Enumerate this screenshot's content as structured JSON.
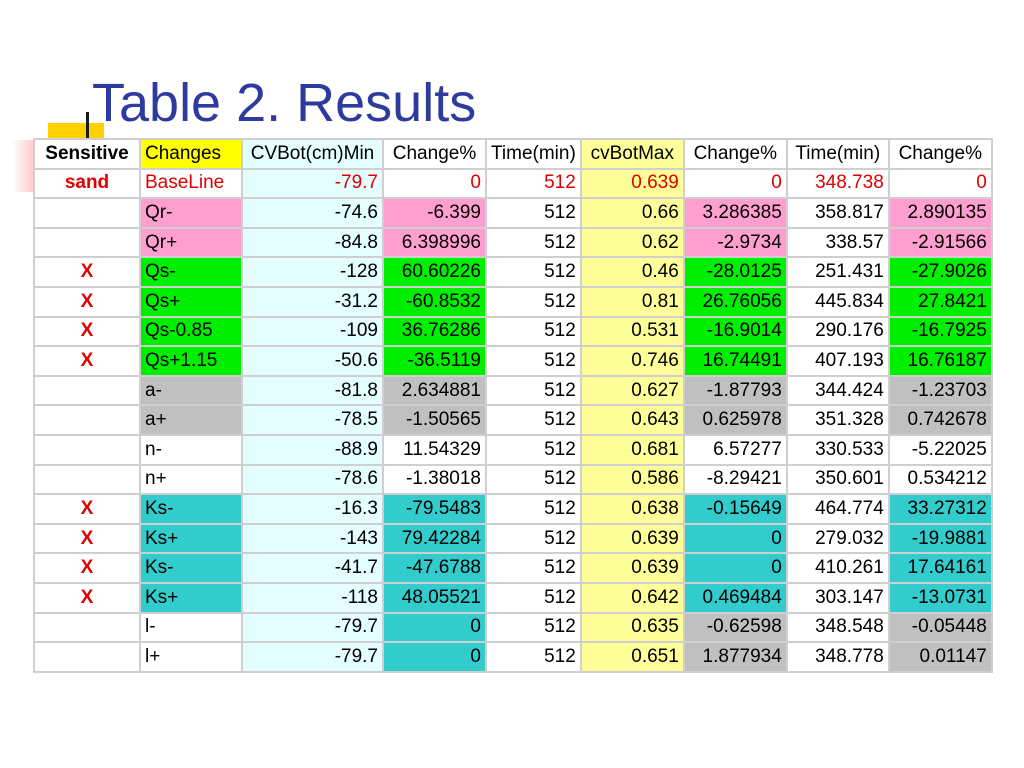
{
  "title": "Table 2. Results",
  "colors": {
    "title": "#2e3a9e",
    "mark": "#e00000",
    "cv_column": "#e4fdff",
    "cvbotmax_column": "#ffff99",
    "header_changes": "#ffff00",
    "qr": "#ff9fd0",
    "qs": "#00ee00",
    "a": "#c0c0c0",
    "ks": "#33cccc"
  },
  "table": {
    "headers": [
      "Sensitive",
      "Changes",
      "CVBot(cm)Min",
      "Change%",
      "Time(min)",
      "cvBotMax",
      "Change%",
      "Time(min)",
      "Change%"
    ],
    "rows": [
      {
        "sensitive": "sand",
        "change": "BaseLine",
        "cvbot_min": "-79.7",
        "change1": "0",
        "time1": "512",
        "cvbotmax": "0.639",
        "change2": "0",
        "time2": "348.738",
        "change3": "0"
      },
      {
        "sensitive": "",
        "change": "Qr-",
        "cvbot_min": "-74.6",
        "change1": "-6.399",
        "time1": "512",
        "cvbotmax": "0.66",
        "change2": "3.286385",
        "time2": "358.817",
        "change3": "2.890135"
      },
      {
        "sensitive": "",
        "change": "Qr+",
        "cvbot_min": "-84.8",
        "change1": "6.398996",
        "time1": "512",
        "cvbotmax": "0.62",
        "change2": "-2.9734",
        "time2": "338.57",
        "change3": "-2.91566"
      },
      {
        "sensitive": "X",
        "change": "Qs-",
        "cvbot_min": "-128",
        "change1": "60.60226",
        "time1": "512",
        "cvbotmax": "0.46",
        "change2": "-28.0125",
        "time2": "251.431",
        "change3": "-27.9026"
      },
      {
        "sensitive": "X",
        "change": "Qs+",
        "cvbot_min": "-31.2",
        "change1": "-60.8532",
        "time1": "512",
        "cvbotmax": "0.81",
        "change2": "26.76056",
        "time2": "445.834",
        "change3": "27.8421"
      },
      {
        "sensitive": "X",
        "change": "Qs-0.85",
        "cvbot_min": "-109",
        "change1": "36.76286",
        "time1": "512",
        "cvbotmax": "0.531",
        "change2": "-16.9014",
        "time2": "290.176",
        "change3": "-16.7925"
      },
      {
        "sensitive": "X",
        "change": "Qs+1.15",
        "cvbot_min": "-50.6",
        "change1": "-36.5119",
        "time1": "512",
        "cvbotmax": "0.746",
        "change2": "16.74491",
        "time2": "407.193",
        "change3": "16.76187"
      },
      {
        "sensitive": "",
        "change": "a-",
        "cvbot_min": "-81.8",
        "change1": "2.634881",
        "time1": "512",
        "cvbotmax": "0.627",
        "change2": "-1.87793",
        "time2": "344.424",
        "change3": "-1.23703"
      },
      {
        "sensitive": "",
        "change": "a+",
        "cvbot_min": "-78.5",
        "change1": "-1.50565",
        "time1": "512",
        "cvbotmax": "0.643",
        "change2": "0.625978",
        "time2": "351.328",
        "change3": "0.742678"
      },
      {
        "sensitive": "",
        "change": "n-",
        "cvbot_min": "-88.9",
        "change1": "11.54329",
        "time1": "512",
        "cvbotmax": "0.681",
        "change2": "6.57277",
        "time2": "330.533",
        "change3": "-5.22025"
      },
      {
        "sensitive": "",
        "change": "n+",
        "cvbot_min": "-78.6",
        "change1": "-1.38018",
        "time1": "512",
        "cvbotmax": "0.586",
        "change2": "-8.29421",
        "time2": "350.601",
        "change3": "0.534212"
      },
      {
        "sensitive": "X",
        "change": "Ks-",
        "cvbot_min": "-16.3",
        "change1": "-79.5483",
        "time1": "512",
        "cvbotmax": "0.638",
        "change2": "-0.15649",
        "time2": "464.774",
        "change3": "33.27312"
      },
      {
        "sensitive": "X",
        "change": "Ks+",
        "cvbot_min": "-143",
        "change1": "79.42284",
        "time1": "512",
        "cvbotmax": "0.639",
        "change2": "0",
        "time2": "279.032",
        "change3": "-19.9881"
      },
      {
        "sensitive": "X",
        "change": "Ks-",
        "cvbot_min": "-41.7",
        "change1": "-47.6788",
        "time1": "512",
        "cvbotmax": "0.639",
        "change2": "0",
        "time2": "410.261",
        "change3": "17.64161"
      },
      {
        "sensitive": "X",
        "change": "Ks+",
        "cvbot_min": "-118",
        "change1": "48.05521",
        "time1": "512",
        "cvbotmax": "0.642",
        "change2": "0.469484",
        "time2": "303.147",
        "change3": "-13.0731"
      },
      {
        "sensitive": "",
        "change": "l-",
        "cvbot_min": "-79.7",
        "change1": "0",
        "time1": "512",
        "cvbotmax": "0.635",
        "change2": "-0.62598",
        "time2": "348.548",
        "change3": "-0.05448"
      },
      {
        "sensitive": "",
        "change": "l+",
        "cvbot_min": "-79.7",
        "change1": "0",
        "time1": "512",
        "cvbotmax": "0.651",
        "change2": "1.877934",
        "time2": "348.778",
        "change3": "0.01147"
      }
    ]
  }
}
